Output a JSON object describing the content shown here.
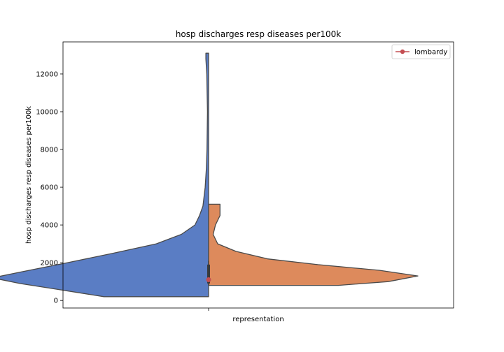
{
  "chart_data": {
    "type": "violin",
    "title": "hosp discharges resp diseases per100k",
    "xlabel": "representation",
    "ylabel": "hosp discharges resp diseases per100k",
    "ylim": [
      -400,
      13700
    ],
    "yticks": [
      0,
      2000,
      4000,
      6000,
      8000,
      10000,
      12000
    ],
    "grid": false,
    "legend": {
      "placement": "top-right",
      "entries": [
        "lombardy"
      ]
    },
    "split_halves": [
      {
        "side": "left",
        "color": "#5a7dc4",
        "range": [
          200,
          13100
        ],
        "density_profile": [
          [
            200,
            0.46
          ],
          [
            600,
            0.67
          ],
          [
            900,
            0.83
          ],
          [
            1200,
            0.95
          ],
          [
            1500,
            0.83
          ],
          [
            2000,
            0.62
          ],
          [
            2500,
            0.42
          ],
          [
            3000,
            0.23
          ],
          [
            3500,
            0.12
          ],
          [
            4000,
            0.06
          ],
          [
            4500,
            0.04
          ],
          [
            5000,
            0.025
          ],
          [
            5500,
            0.02
          ],
          [
            6000,
            0.015
          ],
          [
            7000,
            0.01
          ],
          [
            8000,
            0.007
          ],
          [
            10000,
            0.005
          ],
          [
            12000,
            0.008
          ],
          [
            12800,
            0.012
          ],
          [
            13100,
            0.012
          ]
        ]
      },
      {
        "side": "right",
        "color": "#dd8a5c",
        "range": [
          800,
          5100
        ],
        "density_profile": [
          [
            800,
            0.57
          ],
          [
            1000,
            0.79
          ],
          [
            1300,
            0.92
          ],
          [
            1600,
            0.75
          ],
          [
            1900,
            0.48
          ],
          [
            2200,
            0.26
          ],
          [
            2600,
            0.12
          ],
          [
            3000,
            0.04
          ],
          [
            3500,
            0.02
          ],
          [
            4000,
            0.03
          ],
          [
            4500,
            0.05
          ],
          [
            5100,
            0.05
          ]
        ]
      }
    ],
    "inner_box": {
      "q1": 900,
      "median": 1150,
      "q3": 1900,
      "whisker_low": 800,
      "whisker_high": 2100
    },
    "point": {
      "series": "lombardy",
      "value": 1100,
      "color": "#c44e52"
    }
  }
}
